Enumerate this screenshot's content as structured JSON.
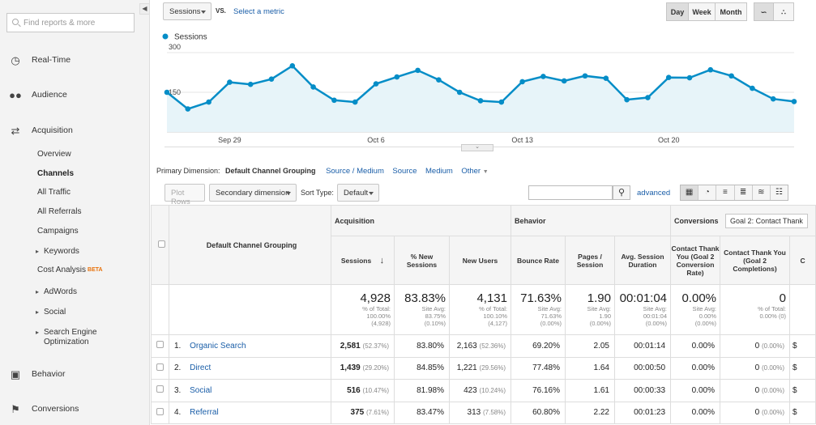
{
  "sidebar": {
    "search_placeholder": "Find reports & more",
    "main_items": [
      {
        "label": "Real-Time",
        "icon": "clock-icon"
      },
      {
        "label": "Audience",
        "icon": "people-icon"
      },
      {
        "label": "Acquisition",
        "icon": "acquisition-arrows-icon"
      },
      {
        "label": "Behavior",
        "icon": "behavior-window-icon"
      },
      {
        "label": "Conversions",
        "icon": "flag-icon"
      }
    ],
    "acquisition_sub": [
      "Overview",
      "Channels",
      "All Traffic",
      "All Referrals",
      "Campaigns",
      "Keywords",
      "Cost Analysis",
      "AdWords",
      "Social",
      "Search Engine Optimization"
    ],
    "beta_label": "BETA"
  },
  "toolbar": {
    "metric_select": "Sessions",
    "vs_label": "VS.",
    "select_metric_link": "Select a metric",
    "day_label": "Day",
    "week_label": "Week",
    "month_label": "Month"
  },
  "chart_data": {
    "type": "line",
    "series": [
      {
        "name": "Sessions",
        "values": [
          150,
          87,
          113,
          188,
          180,
          200,
          250,
          170,
          120,
          113,
          182,
          208,
          233,
          197,
          150,
          118,
          113,
          190,
          210,
          193,
          212,
          203,
          122,
          130,
          206,
          205,
          235,
          212,
          165,
          125,
          115
        ]
      }
    ],
    "y_ticks": [
      "300",
      "150"
    ],
    "ylim": [
      0,
      300
    ],
    "x_tick_labels": [
      "Sep 29",
      "Oct 6",
      "Oct 13",
      "Oct 20"
    ],
    "x_tick_index": [
      3,
      10,
      17,
      24
    ],
    "line_color": "#058dc7",
    "fill_color": "#e7f4f9",
    "grid": true
  },
  "dimension": {
    "label": "Primary Dimension:",
    "current": "Default Channel Grouping",
    "options": [
      "Source / Medium",
      "Source",
      "Medium",
      "Other"
    ]
  },
  "table_controls": {
    "plot_rows": "Plot Rows",
    "secondary_dimension": "Secondary dimension",
    "sort_type_label": "Sort Type:",
    "sort_type_value": "Default",
    "advanced_link": "advanced"
  },
  "table": {
    "dimension_header": "Default Channel Grouping",
    "groups": {
      "acquisition": "Acquisition",
      "behavior": "Behavior",
      "conversions": "Conversions",
      "goal_select": "Goal 2: Contact Thank"
    },
    "columns": [
      "Sessions",
      "% New Sessions",
      "New Users",
      "Bounce Rate",
      "Pages / Session",
      "Avg. Session Duration",
      "Contact Thank You (Goal 2 Conversion Rate)",
      "Contact Thank You (Goal 2 Completions)"
    ],
    "totals": [
      {
        "value": "4,928",
        "sub": "% of Total:\n100.00%\n(4,928)"
      },
      {
        "value": "83.83%",
        "sub": "Site Avg:\n83.75%\n(0.10%)"
      },
      {
        "value": "4,131",
        "sub": "% of Total:\n100.10%\n(4,127)"
      },
      {
        "value": "71.63%",
        "sub": "Site Avg:\n71.63%\n(0.00%)"
      },
      {
        "value": "1.90",
        "sub": "Site Avg:\n1.90\n(0.00%)"
      },
      {
        "value": "00:01:04",
        "sub": "Site Avg:\n00:01:04\n(0.00%)"
      },
      {
        "value": "0.00%",
        "sub": "Site Avg:\n0.00%\n(0.00%)"
      },
      {
        "value": "0",
        "sub": "% of Total:\n0.00% (0)"
      }
    ],
    "rows": [
      {
        "num": "1.",
        "name": "Organic Search",
        "sessions": "2,581",
        "sessions_pct": "(52.37%)",
        "new_sessions": "83.80%",
        "new_users": "2,163",
        "new_users_pct": "(52.36%)",
        "bounce": "69.20%",
        "pages": "2.05",
        "duration": "00:01:14",
        "conv_rate": "0.00%",
        "completions": "0",
        "completions_pct": "(0.00%)",
        "next_col": "$"
      },
      {
        "num": "2.",
        "name": "Direct",
        "sessions": "1,439",
        "sessions_pct": "(29.20%)",
        "new_sessions": "84.85%",
        "new_users": "1,221",
        "new_users_pct": "(29.56%)",
        "bounce": "77.48%",
        "pages": "1.64",
        "duration": "00:00:50",
        "conv_rate": "0.00%",
        "completions": "0",
        "completions_pct": "(0.00%)",
        "next_col": "$"
      },
      {
        "num": "3.",
        "name": "Social",
        "sessions": "516",
        "sessions_pct": "(10.47%)",
        "new_sessions": "81.98%",
        "new_users": "423",
        "new_users_pct": "(10.24%)",
        "bounce": "76.16%",
        "pages": "1.61",
        "duration": "00:00:33",
        "conv_rate": "0.00%",
        "completions": "0",
        "completions_pct": "(0.00%)",
        "next_col": "$"
      },
      {
        "num": "4.",
        "name": "Referral",
        "sessions": "375",
        "sessions_pct": "(7.61%)",
        "new_sessions": "83.47%",
        "new_users": "313",
        "new_users_pct": "(7.58%)",
        "bounce": "60.80%",
        "pages": "2.22",
        "duration": "00:01:23",
        "conv_rate": "0.00%",
        "completions": "0",
        "completions_pct": "(0.00%)",
        "next_col": "$"
      }
    ]
  }
}
